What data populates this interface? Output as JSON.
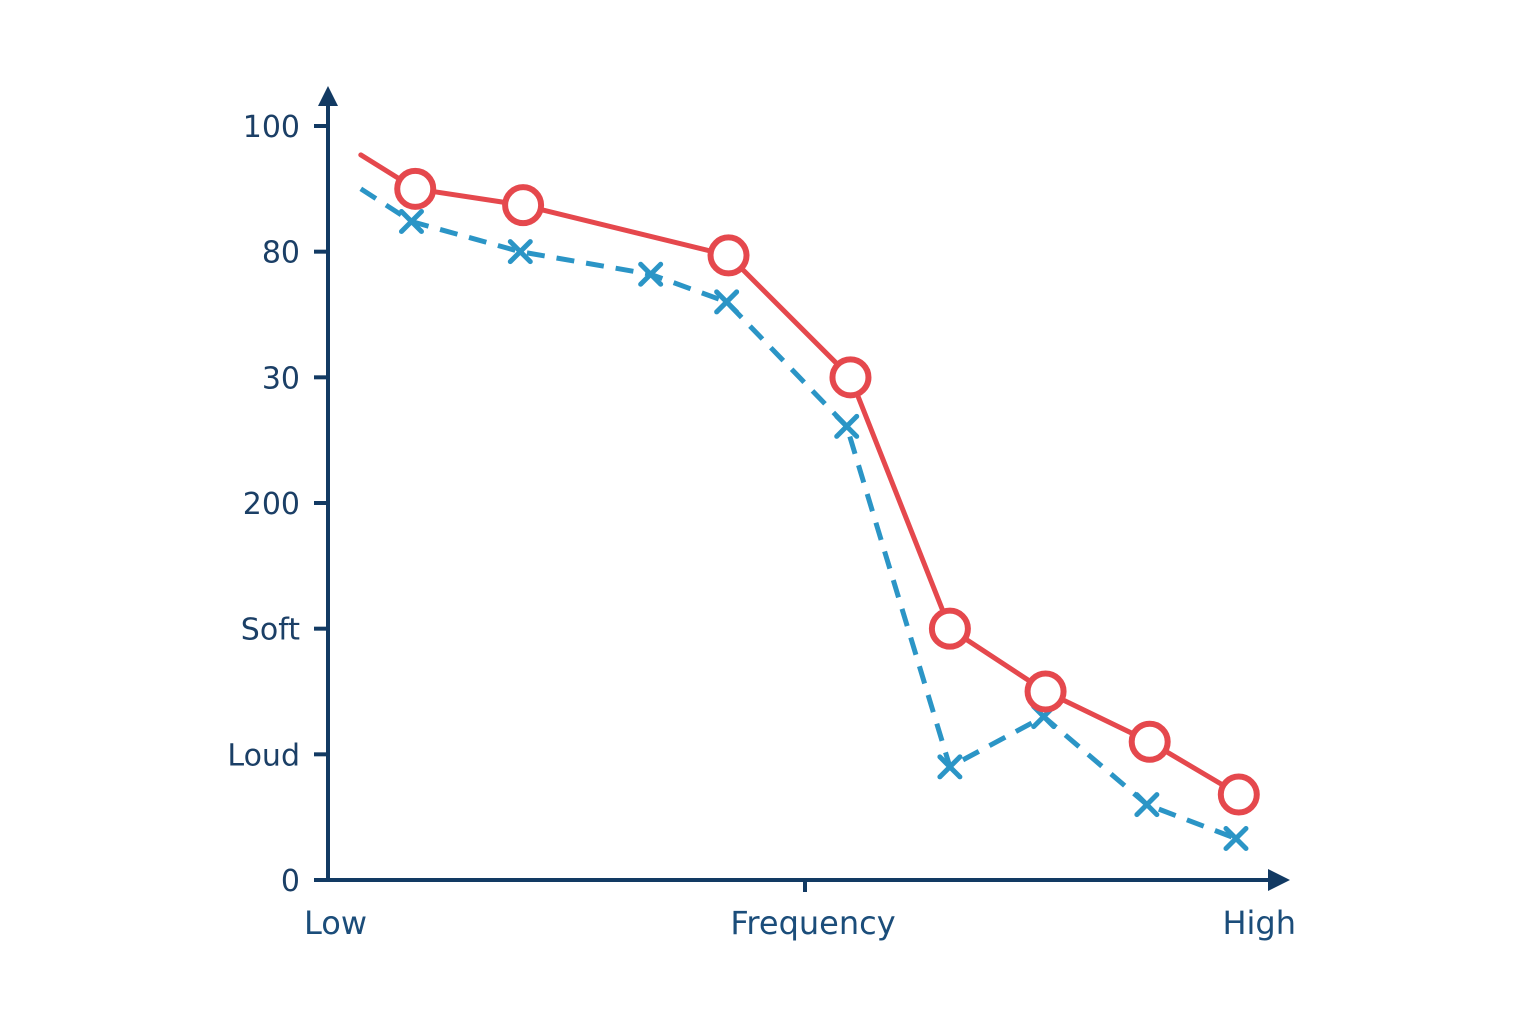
{
  "chart_data": {
    "type": "line",
    "title": "",
    "xlabel": "Frequency",
    "ylabel": "",
    "x_tick_labels": {
      "low": "Low",
      "high": "High"
    },
    "y_tick_labels": [
      "0",
      "Loud",
      "Soft",
      "200",
      "30",
      "80",
      "100"
    ],
    "ylim": [
      0,
      6
    ],
    "xlim": [
      0,
      1
    ],
    "grid": false,
    "legend": "none",
    "series": [
      {
        "style": "solid red line with hollow circle markers",
        "color": "#e5484d",
        "marker": "circle",
        "line_start": {
          "x": 0.035,
          "y": 5.77
        },
        "points": [
          {
            "x": 0.093,
            "y": 5.5
          },
          {
            "x": 0.208,
            "y": 5.37
          },
          {
            "x": 0.427,
            "y": 4.97
          },
          {
            "x": 0.557,
            "y": 4.0
          },
          {
            "x": 0.663,
            "y": 2.0
          },
          {
            "x": 0.765,
            "y": 1.5
          },
          {
            "x": 0.876,
            "y": 1.1
          },
          {
            "x": 0.971,
            "y": 0.68
          }
        ]
      },
      {
        "style": "dashed blue line with x markers",
        "color": "#2b95c6",
        "marker": "x",
        "line_start": {
          "x": 0.035,
          "y": 5.5
        },
        "points": [
          {
            "x": 0.089,
            "y": 5.24
          },
          {
            "x": 0.205,
            "y": 5.0
          },
          {
            "x": 0.344,
            "y": 4.82
          },
          {
            "x": 0.425,
            "y": 4.6
          },
          {
            "x": 0.553,
            "y": 3.61
          },
          {
            "x": 0.663,
            "y": 0.9
          },
          {
            "x": 0.763,
            "y": 1.3
          },
          {
            "x": 0.873,
            "y": 0.6
          },
          {
            "x": 0.968,
            "y": 0.33
          }
        ]
      }
    ]
  }
}
